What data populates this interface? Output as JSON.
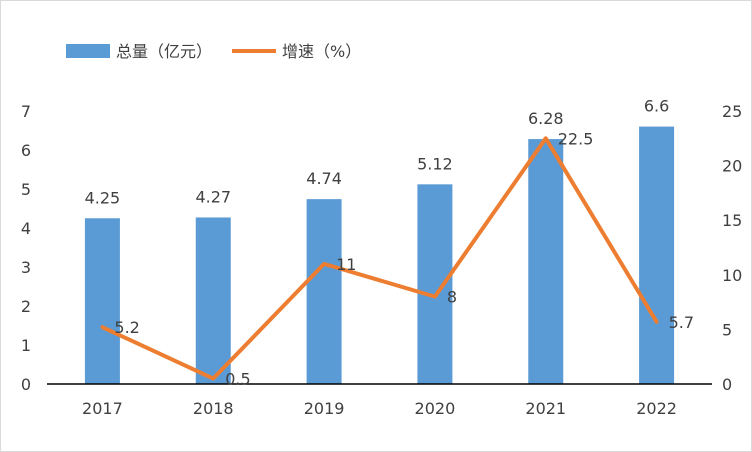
{
  "chart_data": {
    "type": "bar+line",
    "categories": [
      "2017",
      "2018",
      "2019",
      "2020",
      "2021",
      "2022"
    ],
    "series": [
      {
        "name": "总量（亿元）",
        "type": "bar",
        "axis": "left",
        "color": "#5B9BD5",
        "values": [
          4.25,
          4.27,
          4.74,
          5.12,
          6.28,
          6.6
        ],
        "labels": [
          "4.25",
          "4.27",
          "4.74",
          "5.12",
          "6.28",
          "6.6"
        ]
      },
      {
        "name": "增速（%）",
        "type": "line",
        "axis": "right",
        "color": "#ED7D31",
        "values": [
          5.2,
          0.5,
          11,
          8,
          22.5,
          5.7
        ],
        "labels": [
          "5.2",
          "0.5",
          "11",
          "8",
          "22.5",
          "5.7"
        ]
      }
    ],
    "left_axis": {
      "min": 0,
      "max": 7,
      "ticks": [
        0,
        1,
        2,
        3,
        4,
        5,
        6,
        7
      ],
      "tick_labels": [
        "0",
        "1",
        "2",
        "3",
        "4",
        "5",
        "6",
        "7"
      ]
    },
    "right_axis": {
      "min": 0,
      "max": 25,
      "ticks": [
        0,
        5,
        10,
        15,
        20,
        25
      ],
      "tick_labels": [
        "0",
        "5",
        "10",
        "15",
        "20",
        "25"
      ]
    },
    "legend": {
      "position": "top-left",
      "items": [
        "总量（亿元）",
        "增速（%）"
      ]
    },
    "grid": false,
    "axis_color": "#000000",
    "text_color": "#404040"
  }
}
